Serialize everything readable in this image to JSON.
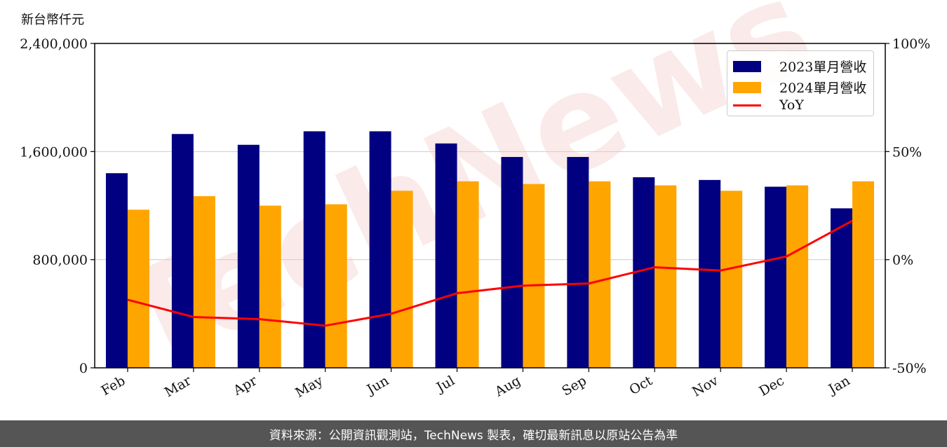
{
  "unit_label": "新台幣仟元",
  "footer": "資料來源：公開資訊觀測站，TechNews 製表，確切最新訊息以原站公告為準",
  "colors": {
    "series_2023": "#000080",
    "series_2024": "#FFA500",
    "yoy": "#FF0000",
    "grid": "#cccccc"
  },
  "chart_data": {
    "type": "bar",
    "categories": [
      "Feb",
      "Mar",
      "Apr",
      "May",
      "Jun",
      "Jul",
      "Aug",
      "Sep",
      "Oct",
      "Nov",
      "Dec",
      "Jan"
    ],
    "series": [
      {
        "name": "2023單月營收",
        "values": [
          1440000,
          1730000,
          1650000,
          1750000,
          1750000,
          1660000,
          1560000,
          1560000,
          1410000,
          1390000,
          1340000,
          1180000
        ]
      },
      {
        "name": "2024單月營收",
        "values": [
          1170000,
          1270000,
          1200000,
          1210000,
          1310000,
          1380000,
          1360000,
          1380000,
          1350000,
          1310000,
          1350000,
          1380000
        ]
      }
    ],
    "line_series": {
      "name": "YoY",
      "values": [
        -18.5,
        -26.5,
        -27.5,
        -30.5,
        -25,
        -15.5,
        -12,
        -11,
        -3.5,
        -5,
        1.5,
        18
      ]
    },
    "ylim": [
      0,
      2400000
    ],
    "yticks": [
      "0",
      "800,000",
      "1,600,000",
      "2,400,000"
    ],
    "y2lim": [
      -50,
      100
    ],
    "y2ticks": [
      "-50%",
      "0%",
      "50%",
      "100%"
    ],
    "grid": true,
    "legend": "top-right"
  }
}
